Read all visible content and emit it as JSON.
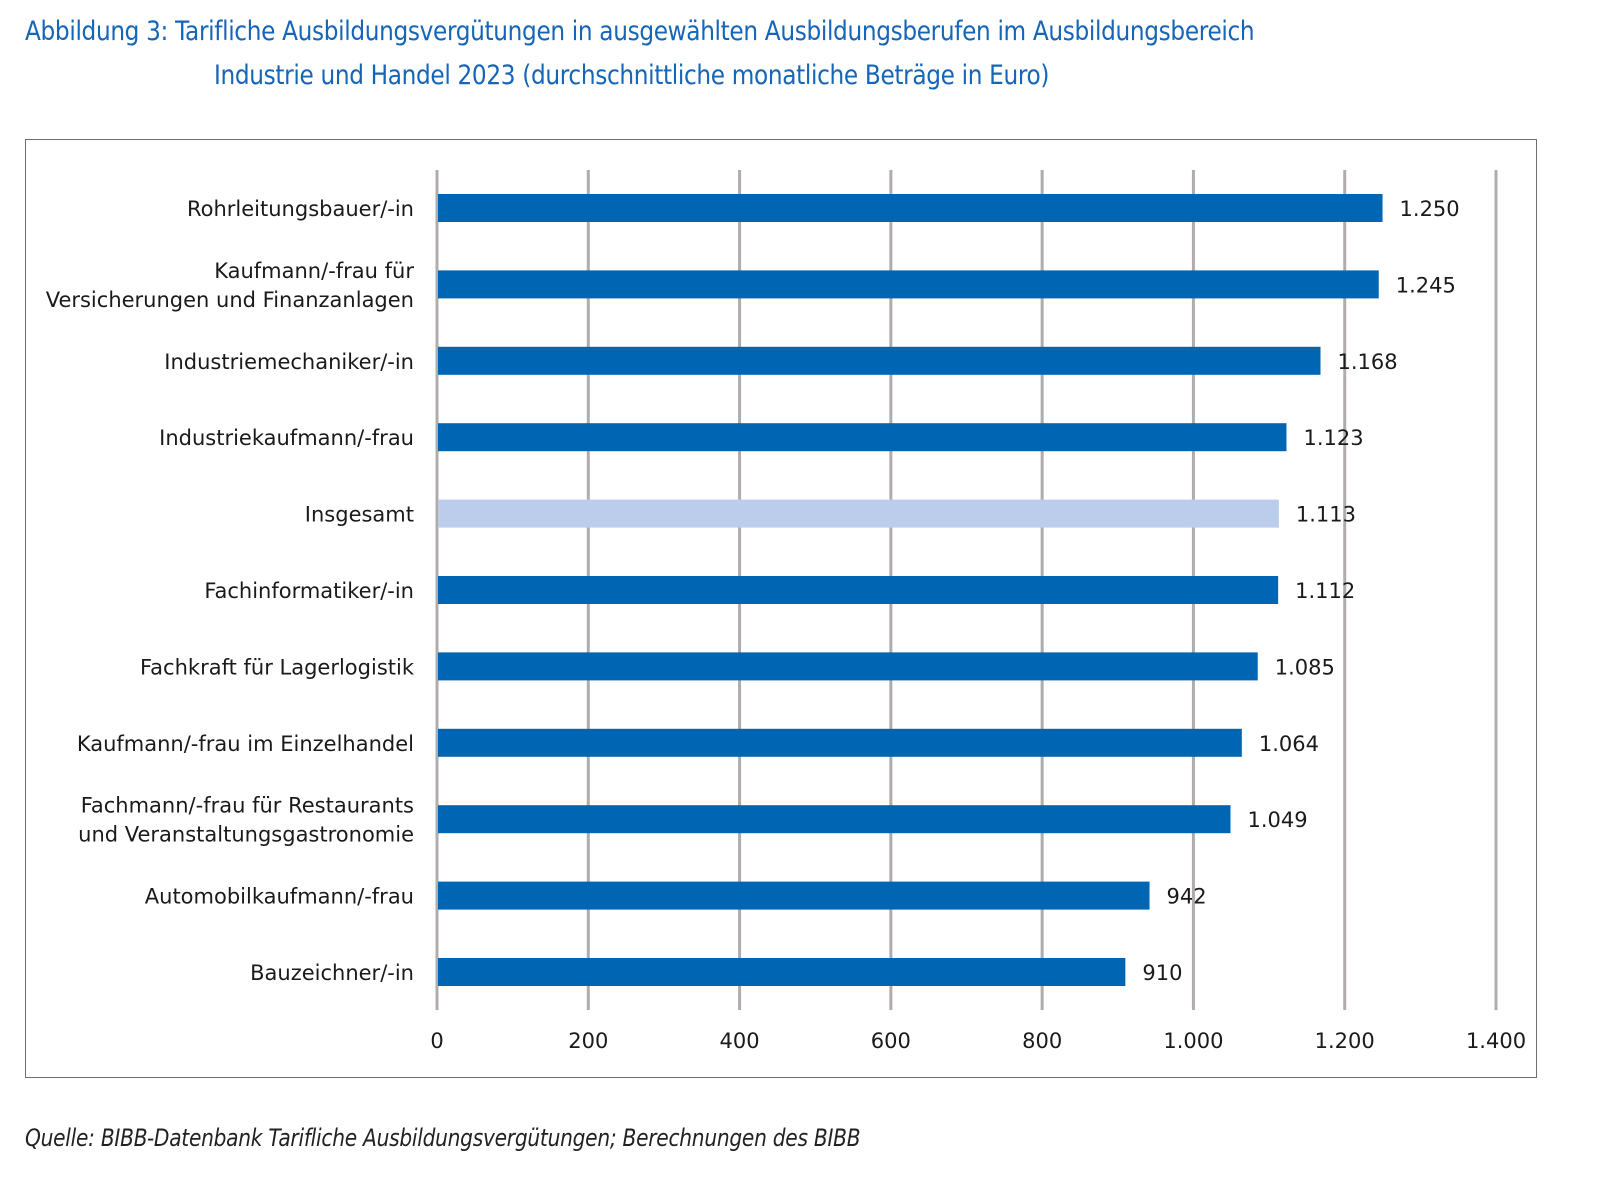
{
  "title": {
    "line1": "Abbildung 3: Tarifliche Ausbildungsvergütungen in ausgewählten Ausbildungsberufen im Ausbildungsbereich",
    "line2": "Industrie und Handel 2023 (durchschnittliche monatliche Beträge in Euro)"
  },
  "source": "Quelle: BIBB-Datenbank Tarifliche Ausbildungsvergütungen; Berechnungen des BIBB",
  "colors": {
    "title": "#1565b8",
    "bar": "#0066b3",
    "highlight_bar": "#bccdeb",
    "grid": "#b0acac",
    "text": "#1a1a1a",
    "frame": "#6f6f6f"
  },
  "chart_data": {
    "type": "bar",
    "orientation": "horizontal",
    "title": "Abbildung 3: Tarifliche Ausbildungsvergütungen in ausgewählten Ausbildungsberufen im Ausbildungsbereich Industrie und Handel 2023 (durchschnittliche monatliche Beträge in Euro)",
    "xlabel": "",
    "ylabel": "",
    "xlim": [
      0,
      1400
    ],
    "xticks": [
      0,
      200,
      400,
      600,
      800,
      1000,
      1200,
      1400
    ],
    "xtick_labels": [
      "0",
      "200",
      "400",
      "600",
      "800",
      "1.000",
      "1.200",
      "1.400"
    ],
    "grid": "vertical",
    "legend": "none",
    "categories": [
      [
        "Rohrleitungsbauer/-in"
      ],
      [
        "Kaufmann/-frau für",
        "Versicherungen und Finanzanlagen"
      ],
      [
        "Industriemechaniker/-in"
      ],
      [
        "Industriekaufmann/-frau"
      ],
      [
        "Insgesamt"
      ],
      [
        "Fachinformatiker/-in"
      ],
      [
        "Fachkraft für Lagerlogistik"
      ],
      [
        "Kaufmann/-frau im Einzelhandel"
      ],
      [
        "Fachmann/-frau für Restaurants",
        "und Veranstaltungsgastronomie"
      ],
      [
        "Automobilkaufmann/-frau"
      ],
      [
        "Bauzeichner/-in"
      ]
    ],
    "values": [
      1250,
      1245,
      1168,
      1123,
      1113,
      1112,
      1085,
      1064,
      1049,
      942,
      910
    ],
    "value_labels": [
      "1.250",
      "1.245",
      "1.168",
      "1.123",
      "1.113",
      "1.112",
      "1.085",
      "1.064",
      "1.049",
      "942",
      "910"
    ],
    "highlighted": [
      "Insgesamt"
    ]
  }
}
